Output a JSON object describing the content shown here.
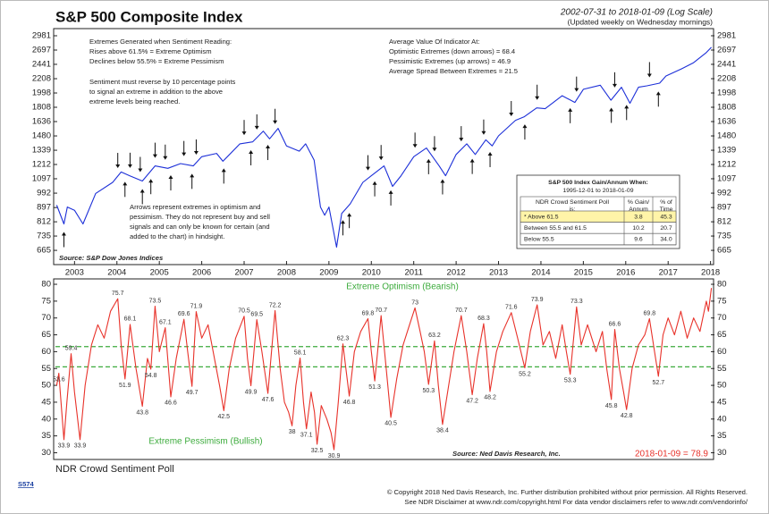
{
  "chart_data": [
    {
      "type": "line",
      "title": "S&P 500 Composite Index",
      "subtitle": "2002-07-31 to 2018-01-09 (Log Scale)",
      "note": "(Updated weekly on Wednesday mornings)",
      "source": "Source: S&P Dow Jones Indices",
      "log_scale": true,
      "grid": false,
      "xlim": [
        2002.55,
        2018.05
      ],
      "xticks": [
        2003,
        2004,
        2005,
        2006,
        2007,
        2008,
        2009,
        2010,
        2011,
        2012,
        2013,
        2014,
        2015,
        2016,
        2017,
        2018
      ],
      "ylim": [
        602,
        3114
      ],
      "yticks": [
        665,
        735,
        812,
        897,
        992,
        1097,
        1212,
        1339,
        1480,
        1636,
        1808,
        1998,
        2208,
        2441,
        2697,
        2981
      ],
      "x": [
        2002.58,
        2002.75,
        2002.83,
        2003.0,
        2003.2,
        2003.5,
        2003.9,
        2004.1,
        2004.3,
        2004.6,
        2004.9,
        2005.2,
        2005.5,
        2005.8,
        2006.0,
        2006.35,
        2006.5,
        2006.9,
        2007.2,
        2007.45,
        2007.6,
        2007.8,
        2008.0,
        2008.3,
        2008.45,
        2008.65,
        2008.8,
        2008.9,
        2009.0,
        2009.18,
        2009.3,
        2009.5,
        2009.8,
        2010.0,
        2010.3,
        2010.5,
        2010.7,
        2011.0,
        2011.3,
        2011.6,
        2011.75,
        2012.0,
        2012.25,
        2012.45,
        2012.7,
        2012.85,
        2013.0,
        2013.4,
        2013.6,
        2013.9,
        2014.1,
        2014.5,
        2014.8,
        2015.0,
        2015.4,
        2015.65,
        2015.9,
        2016.1,
        2016.3,
        2016.5,
        2016.8,
        2016.95,
        2017.3,
        2017.6,
        2017.9,
        2018.02
      ],
      "series": [
        {
          "name": "S&P 500",
          "color": "#1c2fd8",
          "values": [
            912,
            800,
            900,
            880,
            800,
            990,
            1070,
            1150,
            1120,
            1080,
            1200,
            1180,
            1220,
            1200,
            1280,
            1310,
            1240,
            1400,
            1420,
            1530,
            1450,
            1560,
            1380,
            1330,
            1400,
            1250,
            900,
            850,
            900,
            680,
            860,
            920,
            1070,
            1120,
            1200,
            1040,
            1120,
            1280,
            1360,
            1200,
            1120,
            1300,
            1400,
            1300,
            1440,
            1380,
            1480,
            1650,
            1690,
            1800,
            1790,
            1960,
            1870,
            2050,
            2110,
            1900,
            2080,
            1860,
            2080,
            2100,
            2140,
            2250,
            2360,
            2470,
            2650,
            2750
          ]
        }
      ],
      "down_arrows": [
        2004.02,
        2004.31,
        2004.55,
        2004.9,
        2005.14,
        2005.58,
        2005.87,
        2007.0,
        2007.3,
        2007.73,
        2009.92,
        2010.23,
        2011.03,
        2011.49,
        2012.12,
        2012.65,
        2013.3,
        2013.91,
        2014.84,
        2015.74,
        2016.56
      ],
      "up_arrows": [
        2002.75,
        2004.19,
        2004.6,
        2004.8,
        2005.27,
        2005.77,
        2006.52,
        2007.16,
        2007.56,
        2009.33,
        2009.48,
        2010.08,
        2010.46,
        2011.35,
        2011.68,
        2012.38,
        2012.8,
        2013.62,
        2014.69,
        2015.66,
        2016.02,
        2016.77
      ],
      "annotations": [
        {
          "lines": [
            "Extremes Generated when Sentiment Reading:",
            "Rises above 61.5% = Extreme Optimism",
            "Declines below 55.5% = Extreme Pessimism"
          ]
        },
        {
          "lines": [
            "Sentiment must reverse by 10 percentage points",
            "to signal an extreme in addition to the above",
            "extreme levels being reached."
          ]
        },
        {
          "lines": [
            "Average Value Of Indicator At:",
            "Optimistic Extremes (down arrows) = 68.4",
            "Pessimistic Extremes (up arrows) = 46.9",
            "Average Spread Between Extremes = 21.5"
          ]
        },
        {
          "lines": [
            "Arrows represent extremes in optimism and",
            "pessimism. They do not represent buy and sell",
            "signals and can only be known for certain (and",
            "added to the chart) in hindsight."
          ]
        }
      ],
      "table": {
        "title": "S&P 500 Index Gain/Annum When:",
        "subtitle": "1995-12-01 to 2018-01-09",
        "header": [
          [
            "NDR Crowd Sentiment Poll",
            "is:"
          ],
          [
            "% Gain/",
            "Annum"
          ],
          [
            "% of",
            "Time"
          ]
        ],
        "rows": [
          [
            "* Above 61.5",
            "3.8",
            "45.3"
          ],
          [
            "Between 55.5 and 61.5",
            "10.2",
            "20.7"
          ],
          [
            "Below 55.5",
            "9.6",
            "34.0"
          ]
        ]
      }
    },
    {
      "type": "line",
      "title": "NDR Crowd Sentiment Poll",
      "source": "Source: Ned Davis Research, Inc.",
      "last_value": "2018-01-09 = 78.9",
      "xlim": [
        2002.55,
        2018.05
      ],
      "ylim": [
        28,
        81.6
      ],
      "yticks": [
        30,
        35,
        40,
        45,
        50,
        55,
        60,
        65,
        70,
        75,
        80
      ],
      "reference_lines": [
        {
          "value": 61.5,
          "label": "Extreme Optimism (Bearish)",
          "color": "#3cab3c"
        },
        {
          "value": 55.5,
          "label": "Extreme Pessimism (Bullish)",
          "color": "#3cab3c"
        }
      ],
      "x": [
        2002.58,
        2002.63,
        2002.7,
        2002.75,
        2002.82,
        2002.92,
        2003.0,
        2003.13,
        2003.25,
        2003.4,
        2003.55,
        2003.7,
        2003.85,
        2004.02,
        2004.1,
        2004.19,
        2004.31,
        2004.45,
        2004.6,
        2004.72,
        2004.8,
        2004.9,
        2005.0,
        2005.14,
        2005.27,
        2005.4,
        2005.58,
        2005.67,
        2005.77,
        2005.87,
        2006.0,
        2006.15,
        2006.3,
        2006.42,
        2006.52,
        2006.65,
        2006.8,
        2007.0,
        2007.08,
        2007.16,
        2007.3,
        2007.42,
        2007.56,
        2007.73,
        2007.85,
        2007.95,
        2008.05,
        2008.13,
        2008.22,
        2008.32,
        2008.4,
        2008.47,
        2008.58,
        2008.66,
        2008.72,
        2008.82,
        2008.95,
        2009.05,
        2009.12,
        2009.22,
        2009.33,
        2009.4,
        2009.48,
        2009.6,
        2009.75,
        2009.92,
        2010.0,
        2010.08,
        2010.23,
        2010.35,
        2010.46,
        2010.6,
        2010.75,
        2010.9,
        2011.03,
        2011.15,
        2011.25,
        2011.35,
        2011.49,
        2011.58,
        2011.68,
        2011.8,
        2011.95,
        2012.12,
        2012.25,
        2012.38,
        2012.5,
        2012.65,
        2012.72,
        2012.8,
        2012.95,
        2013.1,
        2013.3,
        2013.45,
        2013.62,
        2013.75,
        2013.91,
        2014.05,
        2014.2,
        2014.35,
        2014.5,
        2014.6,
        2014.69,
        2014.84,
        2014.95,
        2015.1,
        2015.3,
        2015.45,
        2015.55,
        2015.66,
        2015.74,
        2015.85,
        2015.95,
        2016.02,
        2016.15,
        2016.3,
        2016.45,
        2016.56,
        2016.68,
        2016.77,
        2016.88,
        2017.0,
        2017.15,
        2017.3,
        2017.45,
        2017.6,
        2017.75,
        2017.9,
        2017.95,
        2018.02
      ],
      "series": [
        {
          "name": "NDR Crowd Sentiment Poll",
          "color": "#e8322a",
          "values": [
            50,
            53.6,
            42,
            33.9,
            45,
            59.4,
            48,
            33.9,
            50,
            62,
            68,
            64,
            72,
            75.7,
            62,
            51.9,
            68.1,
            55,
            43.8,
            58,
            54.8,
            73.5,
            60,
            67.1,
            46.6,
            58,
            69.6,
            60,
            49.7,
            71.9,
            64,
            68,
            58,
            50,
            42.5,
            55,
            64,
            70.5,
            58,
            49.9,
            69.5,
            60,
            47.6,
            72.2,
            55,
            45,
            42,
            38.0,
            50,
            58.1,
            45,
            37.1,
            48,
            42,
            32.5,
            44,
            40,
            36,
            30.9,
            45,
            62.3,
            55,
            46.8,
            60,
            66,
            69.8,
            60,
            51.3,
            70.7,
            55,
            40.5,
            52,
            62,
            68,
            73.0,
            66,
            60,
            50.3,
            63.2,
            50,
            38.4,
            48,
            60,
            70.7,
            60,
            47.2,
            58,
            68.3,
            60,
            48.2,
            60,
            66,
            71.6,
            64,
            55.2,
            66,
            73.9,
            62,
            66,
            58,
            68,
            60,
            53.3,
            73.3,
            62,
            68,
            60,
            66,
            55,
            45.8,
            66.6,
            55,
            48,
            42.8,
            55,
            62,
            65,
            69.8,
            60,
            52.7,
            65,
            70,
            65,
            72,
            64,
            70,
            66,
            75,
            72,
            78.9
          ]
        }
      ],
      "point_labels": [
        {
          "x": 2002.63,
          "value": 53.6
        },
        {
          "x": 2002.75,
          "value": 33.9
        },
        {
          "x": 2002.92,
          "value": 59.4
        },
        {
          "x": 2003.13,
          "value": 33.9
        },
        {
          "x": 2004.02,
          "value": 75.7
        },
        {
          "x": 2004.19,
          "value": 51.9
        },
        {
          "x": 2004.31,
          "value": 68.1
        },
        {
          "x": 2004.6,
          "value": 43.8
        },
        {
          "x": 2004.8,
          "value": 54.8
        },
        {
          "x": 2004.9,
          "value": 73.5
        },
        {
          "x": 2005.14,
          "value": 67.1
        },
        {
          "x": 2005.27,
          "value": 46.6
        },
        {
          "x": 2005.58,
          "value": 69.6
        },
        {
          "x": 2005.77,
          "value": 49.7
        },
        {
          "x": 2005.87,
          "value": 71.9
        },
        {
          "x": 2006.52,
          "value": 42.5
        },
        {
          "x": 2007.0,
          "value": 70.5
        },
        {
          "x": 2007.16,
          "value": 49.9
        },
        {
          "x": 2007.3,
          "value": 69.5
        },
        {
          "x": 2007.56,
          "value": 47.6
        },
        {
          "x": 2007.73,
          "value": 72.2
        },
        {
          "x": 2008.13,
          "value": 38.0
        },
        {
          "x": 2008.32,
          "value": 58.1
        },
        {
          "x": 2008.47,
          "value": 37.1
        },
        {
          "x": 2008.72,
          "value": 32.5
        },
        {
          "x": 2009.12,
          "value": 30.9
        },
        {
          "x": 2009.33,
          "value": 62.3
        },
        {
          "x": 2009.48,
          "value": 46.8
        },
        {
          "x": 2009.92,
          "value": 69.8
        },
        {
          "x": 2010.08,
          "value": 51.3
        },
        {
          "x": 2010.23,
          "value": 70.7
        },
        {
          "x": 2010.46,
          "value": 40.5
        },
        {
          "x": 2011.03,
          "value": 73.0
        },
        {
          "x": 2011.35,
          "value": 50.3
        },
        {
          "x": 2011.49,
          "value": 63.2
        },
        {
          "x": 2011.68,
          "value": 38.4
        },
        {
          "x": 2012.12,
          "value": 70.7
        },
        {
          "x": 2012.38,
          "value": 47.2
        },
        {
          "x": 2012.65,
          "value": 68.3
        },
        {
          "x": 2012.8,
          "value": 48.2
        },
        {
          "x": 2013.3,
          "value": 71.6
        },
        {
          "x": 2013.62,
          "value": 55.2
        },
        {
          "x": 2013.91,
          "value": 73.9
        },
        {
          "x": 2014.69,
          "value": 53.3
        },
        {
          "x": 2014.84,
          "value": 73.3
        },
        {
          "x": 2015.66,
          "value": 45.8
        },
        {
          "x": 2015.74,
          "value": 66.6
        },
        {
          "x": 2016.02,
          "value": 42.8
        },
        {
          "x": 2016.56,
          "value": 69.8
        },
        {
          "x": 2016.77,
          "value": 52.7
        }
      ]
    }
  ],
  "footer": {
    "code": "S574",
    "copyright": "© Copyright 2018 Ned Davis Research, Inc. Further distribution prohibited without prior permission. All Rights Reserved.",
    "disclaimer": "See NDR Disclaimer at www.ndr.com/copyright.html  For data vendor disclaimers refer to www.ndr.com/vendorinfo/"
  }
}
